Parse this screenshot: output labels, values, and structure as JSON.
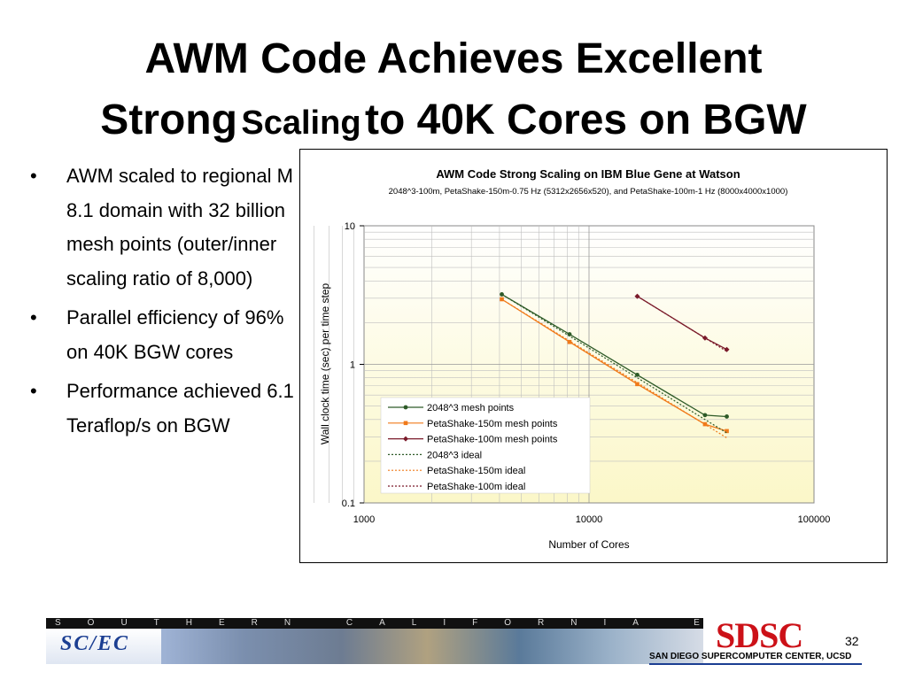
{
  "slide": {
    "title_line1": "AWM Code Achieves Excellent",
    "title_line2_a": "Strong",
    "title_line2_b": "Scaling",
    "title_line2_c": "to 40K Cores on BGW",
    "bullets": [
      "AWM scaled to regional M 8.1 domain with 32 billion mesh points (outer/inner scaling ratio of 8,000)",
      "Parallel efficiency of 96% on 40K BGW cores",
      "Performance achieved 6.1 Teraflop/s on BGW"
    ],
    "bullet_symbol": "•",
    "page_number": "32"
  },
  "footer": {
    "strip_text": "SOUTHERN CALIFORNIA EARTHQUAKE CENTER",
    "scec_logo_text": "SC/EC",
    "sdsc_logo_text": "SDSC",
    "sdsc_subtitle": "SAN DIEGO SUPERCOMPUTER CENTER, UCSD"
  },
  "chart_data": {
    "type": "line",
    "title": "AWM Code Strong Scaling on IBM Blue Gene at Watson",
    "subtitle": "2048^3-100m, PetaShake-150m-0.75 Hz (5312x2656x520), and PetaShake-100m-1 Hz (8000x4000x1000)",
    "xlabel": "Number of Cores",
    "ylabel": "Wall clock time (sec) per time step",
    "x_scale": "log",
    "y_scale": "log",
    "xlim": [
      1000,
      100000
    ],
    "ylim": [
      0.1,
      10
    ],
    "x_ticks": [
      "1000",
      "10000",
      "100000"
    ],
    "y_ticks": [
      "0.1",
      "1",
      "10"
    ],
    "grid": true,
    "legend_position": "bottom-left",
    "colors": {
      "series1": "#2d5a27",
      "series2": "#f07a1a",
      "series3": "#7a1a2a",
      "plot_bg_top": "#ffffff",
      "plot_bg_bottom": "#fbf7c8",
      "grid": "#bfbfbf"
    },
    "series": [
      {
        "name": "2048^3 mesh points",
        "style": "solid",
        "marker": "circle",
        "color": "#2d5a27",
        "x": [
          4096,
          8192,
          16384,
          32768,
          40960
        ],
        "y": [
          3.2,
          1.65,
          0.84,
          0.43,
          0.42
        ]
      },
      {
        "name": "PetaShake-150m mesh points",
        "style": "solid",
        "marker": "square",
        "color": "#f07a1a",
        "x": [
          4096,
          8192,
          16384,
          32768,
          40960
        ],
        "y": [
          2.95,
          1.45,
          0.72,
          0.37,
          0.33
        ]
      },
      {
        "name": "PetaShake-100m mesh points",
        "style": "solid",
        "marker": "diamond",
        "color": "#7a1a2a",
        "x": [
          16384,
          32768,
          40960
        ],
        "y": [
          3.1,
          1.55,
          1.28
        ]
      },
      {
        "name": "2048^3 ideal",
        "style": "dotted",
        "color": "#2d5a27",
        "x": [
          4096,
          8192,
          16384,
          32768,
          40960
        ],
        "y": [
          3.2,
          1.6,
          0.8,
          0.4,
          0.32
        ]
      },
      {
        "name": "PetaShake-150m ideal",
        "style": "dotted",
        "color": "#f07a1a",
        "x": [
          4096,
          8192,
          16384,
          32768,
          40960
        ],
        "y": [
          2.95,
          1.475,
          0.7375,
          0.369,
          0.295
        ]
      },
      {
        "name": "PetaShake-100m ideal",
        "style": "dotted",
        "color": "#7a1a2a",
        "x": [
          16384,
          32768,
          40960
        ],
        "y": [
          3.1,
          1.55,
          1.24
        ]
      }
    ]
  }
}
